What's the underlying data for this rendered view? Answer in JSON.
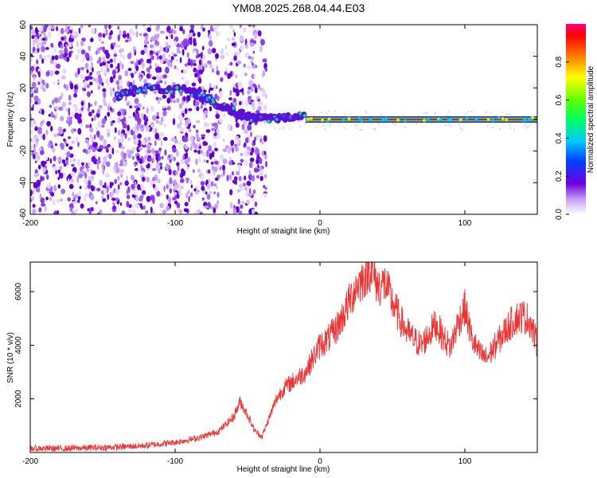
{
  "title": "YM08.2025.268.04.44.E03",
  "chart_data": [
    {
      "type": "heatmap",
      "xlabel": "Height of straight line (km)",
      "ylabel": "Frequency (Hz)",
      "xlim": [
        -200,
        150
      ],
      "ylim": [
        -60,
        60
      ],
      "xticks": [
        -200,
        -100,
        0,
        100
      ],
      "yticks": [
        -60,
        -40,
        -20,
        0,
        20,
        40,
        60
      ],
      "colorbar": {
        "label": "Normalized spectral amplitude",
        "range": [
          0,
          1
        ],
        "ticks": [
          0.0,
          0.2,
          0.4,
          0.6,
          0.8
        ]
      },
      "features": {
        "noise_region_km": [
          -200,
          -37
        ],
        "doppler_trace_hz": [
          [
            -140,
            14
          ],
          [
            -130,
            18
          ],
          [
            -110,
            20
          ],
          [
            -90,
            18
          ],
          [
            -80,
            14
          ],
          [
            -70,
            9
          ],
          [
            -60,
            5
          ],
          [
            -50,
            2
          ],
          [
            -40,
            0
          ],
          [
            -30,
            1
          ],
          [
            -20,
            2
          ],
          [
            -10,
            2
          ]
        ],
        "carrier_line": {
          "from_km": -10,
          "to_km": 150,
          "freq_hz": 0
        }
      }
    },
    {
      "type": "line",
      "xlabel": "Height of straight line (km)",
      "ylabel": "SNR (10 * v/v)",
      "xlim": [
        -200,
        150
      ],
      "ylim": [
        0,
        7100
      ],
      "xticks": [
        -200,
        -100,
        0,
        100
      ],
      "yticks": [
        2000,
        4000,
        6000
      ],
      "series": [
        {
          "name": "SNR",
          "color": "#ee3333",
          "x": [
            -200,
            -180,
            -160,
            -140,
            -120,
            -100,
            -90,
            -80,
            -70,
            -60,
            -55,
            -50,
            -45,
            -40,
            -35,
            -30,
            -25,
            -20,
            -15,
            -10,
            -5,
            0,
            5,
            10,
            15,
            20,
            25,
            30,
            35,
            40,
            45,
            50,
            55,
            60,
            65,
            70,
            75,
            80,
            85,
            90,
            95,
            100,
            105,
            110,
            115,
            120,
            125,
            130,
            135,
            140,
            145,
            150
          ],
          "values": [
            150,
            150,
            170,
            200,
            260,
            380,
            480,
            600,
            800,
            1300,
            1900,
            1400,
            800,
            600,
            1300,
            2000,
            2400,
            2600,
            2800,
            3000,
            3500,
            4000,
            4200,
            4500,
            5000,
            5600,
            6200,
            6500,
            6900,
            6200,
            6300,
            5600,
            5000,
            4500,
            4200,
            4000,
            4400,
            4800,
            4300,
            3900,
            4800,
            5400,
            4200,
            3700,
            3500,
            3900,
            4300,
            4700,
            5000,
            5100,
            4900,
            4000
          ]
        }
      ]
    }
  ]
}
